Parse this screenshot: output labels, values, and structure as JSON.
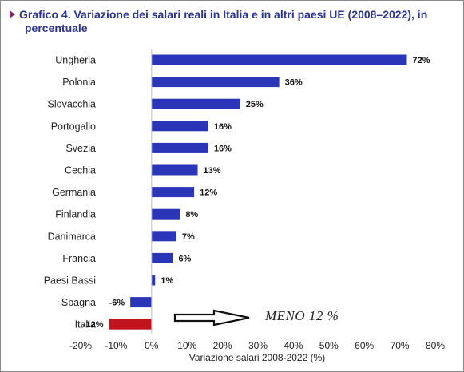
{
  "header": {
    "title_line1": "Grafico 4. Variazione dei salari reali in Italia e in altri paesi UE (2008–2022), in",
    "title_line2": "percentuale"
  },
  "annotation": {
    "text": "MENO 12 %",
    "arrow_icon": "outlined-right-arrow-icon"
  },
  "colors": {
    "positive_bar": "#2b35b8",
    "negative_bar_italia": "#c0151f",
    "title": "#2b3590"
  },
  "chart_data": {
    "type": "bar",
    "orientation": "horizontal",
    "title": "Grafico 4. Variazione dei salari reali in Italia e in altri paesi UE (2008–2022), in percentuale",
    "xlabel": "Variazione salari 2008-2022 (%)",
    "ylabel": "",
    "xlim": [
      -20,
      80
    ],
    "xticks": [
      -20,
      -10,
      0,
      10,
      20,
      30,
      40,
      50,
      60,
      70,
      80
    ],
    "xtick_labels": [
      "-20%",
      "-10%",
      "0%",
      "10%",
      "20%",
      "30%",
      "40%",
      "50%",
      "60%",
      "70%",
      "80%"
    ],
    "grid": false,
    "legend": "none",
    "categories": [
      "Ungheria",
      "Polonia",
      "Slovacchia",
      "Portogallo",
      "Svezia",
      "Cechia",
      "Germania",
      "Finlandia",
      "Danimarca",
      "Francia",
      "Paesi Bassi",
      "Spagna",
      "Italia"
    ],
    "values": [
      72,
      36,
      25,
      16,
      16,
      13,
      12,
      8,
      7,
      6,
      1,
      -6,
      -12
    ],
    "data_labels": [
      "72%",
      "36%",
      "25%",
      "16%",
      "16%",
      "13%",
      "12%",
      "8%",
      "7%",
      "6%",
      "1%",
      "-6%",
      "-12%"
    ],
    "highlight": {
      "category": "Italia",
      "color": "#c0151f"
    }
  }
}
